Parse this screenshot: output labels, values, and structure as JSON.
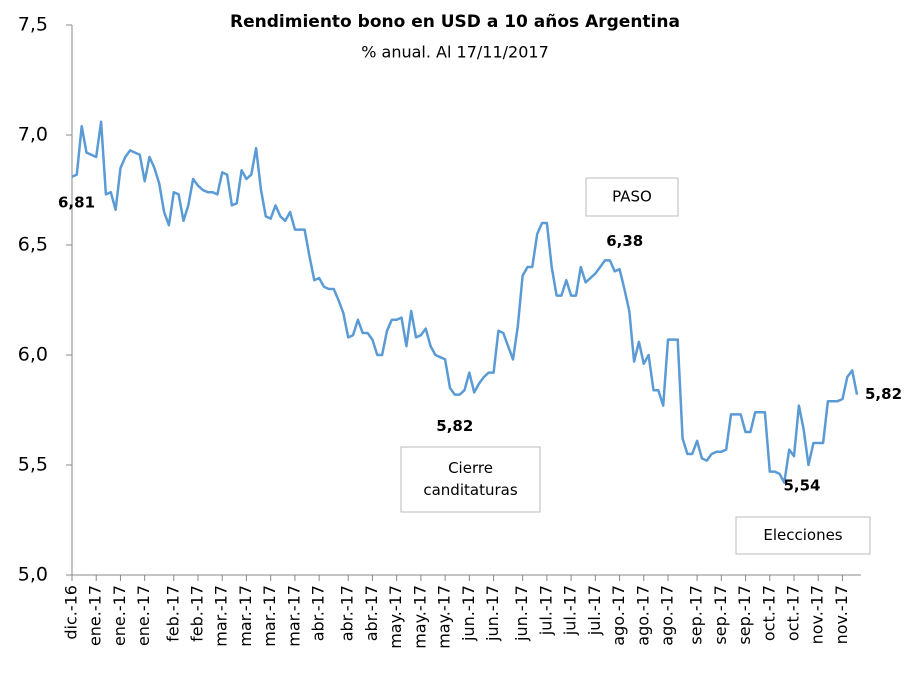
{
  "chart_data": {
    "type": "line",
    "title": "Rendimiento bono en USD a 10 años Argentina",
    "subtitle": "% anual. Al 17/11/2017",
    "color": "#5b9bd5",
    "categories": [
      "dic.-16",
      null,
      null,
      null,
      null,
      "ene.-17",
      null,
      null,
      null,
      null,
      "ene.-17",
      null,
      null,
      null,
      null,
      "ene.-17",
      null,
      null,
      null,
      null,
      null,
      "feb.-17",
      null,
      null,
      null,
      null,
      "feb.-17",
      null,
      null,
      null,
      null,
      "mar.-17",
      null,
      null,
      null,
      null,
      "mar.-17",
      null,
      null,
      null,
      null,
      "mar.-17",
      null,
      null,
      null,
      null,
      "mar.-17",
      null,
      null,
      null,
      null,
      "abr.-17",
      null,
      null,
      null,
      null,
      null,
      "abr.-17",
      null,
      null,
      null,
      null,
      "abr.-17",
      null,
      null,
      null,
      null,
      "may.-17",
      null,
      null,
      null,
      null,
      "may.-17",
      null,
      null,
      null,
      null,
      "may.-17",
      null,
      null,
      null,
      null,
      "jun.-17",
      null,
      null,
      null,
      null,
      "jun.-17",
      null,
      null,
      null,
      null,
      null,
      "jun.-17",
      null,
      null,
      null,
      null,
      "jul.-17",
      null,
      null,
      null,
      null,
      "jul.-17",
      null,
      null,
      null,
      null,
      "jul.-17",
      null,
      null,
      null,
      null,
      "ago.-17",
      null,
      null,
      null,
      null,
      "ago.-17",
      null,
      null,
      null,
      null,
      "ago.-17",
      null,
      null,
      null,
      null,
      null,
      "sep.-17",
      null,
      null,
      null,
      null,
      "sep.-17",
      null,
      null,
      null,
      null,
      "sep.-17",
      null,
      null,
      null,
      null,
      "oct.-17",
      null,
      null,
      null,
      null,
      "oct.-17",
      null,
      null,
      null,
      null,
      "nov.-17",
      null,
      null,
      null,
      null,
      "nov.-17",
      null,
      null,
      null
    ],
    "values": [
      6.81,
      6.82,
      7.04,
      6.92,
      6.91,
      6.9,
      7.06,
      6.73,
      6.74,
      6.66,
      6.85,
      6.9,
      6.93,
      6.92,
      6.91,
      6.79,
      6.9,
      6.85,
      6.78,
      6.65,
      6.59,
      6.74,
      6.73,
      6.61,
      6.68,
      6.8,
      6.77,
      6.75,
      6.74,
      6.74,
      6.73,
      6.83,
      6.82,
      6.68,
      6.69,
      6.84,
      6.8,
      6.82,
      6.94,
      6.75,
      6.63,
      6.62,
      6.68,
      6.63,
      6.61,
      6.65,
      6.57,
      6.57,
      6.57,
      6.45,
      6.34,
      6.35,
      6.31,
      6.3,
      6.3,
      6.25,
      6.19,
      6.08,
      6.09,
      6.16,
      6.1,
      6.1,
      6.07,
      6.0,
      6.0,
      6.11,
      6.16,
      6.16,
      6.17,
      6.04,
      6.2,
      6.08,
      6.09,
      6.12,
      6.04,
      6.0,
      5.99,
      5.98,
      5.85,
      5.82,
      5.82,
      5.84,
      5.92,
      5.83,
      5.87,
      5.9,
      5.92,
      5.92,
      6.11,
      6.1,
      6.04,
      5.98,
      6.13,
      6.36,
      6.4,
      6.4,
      6.55,
      6.6,
      6.6,
      6.4,
      6.27,
      6.27,
      6.34,
      6.27,
      6.27,
      6.4,
      6.33,
      6.35,
      6.37,
      6.4,
      6.43,
      6.43,
      6.38,
      6.39,
      6.3,
      6.2,
      5.97,
      6.06,
      5.96,
      6.0,
      5.84,
      5.84,
      5.77,
      6.07,
      6.07,
      6.07,
      5.62,
      5.55,
      5.55,
      5.61,
      5.53,
      5.52,
      5.55,
      5.56,
      5.56,
      5.57,
      5.73,
      5.73,
      5.73,
      5.65,
      5.65,
      5.74,
      5.74,
      5.74,
      5.47,
      5.47,
      5.46,
      5.42,
      5.57,
      5.54,
      5.77,
      5.66,
      5.5,
      5.6,
      5.6,
      5.6,
      5.79,
      5.79,
      5.79,
      5.8,
      5.9,
      5.93,
      5.82
    ],
    "value_labels": [
      "6,81",
      null,
      null,
      null,
      null,
      null,
      null,
      null,
      null,
      null,
      null,
      null,
      null,
      null,
      null,
      null,
      null,
      null,
      null,
      null,
      null,
      null,
      null,
      null,
      null,
      null,
      null,
      null,
      null,
      null,
      null,
      null,
      null,
      null,
      null,
      null,
      null,
      null,
      null,
      null,
      null,
      null,
      null,
      null,
      null,
      null,
      null,
      null,
      null,
      null,
      null,
      null,
      null,
      null,
      null,
      null,
      null,
      null,
      null,
      null,
      null,
      null,
      null,
      null,
      null,
      null,
      null,
      null,
      null,
      null,
      null,
      null,
      null,
      null,
      null,
      null,
      null,
      null,
      null,
      "5,82",
      null,
      null,
      null,
      null,
      null,
      null,
      null,
      null,
      null,
      null,
      null,
      null,
      null,
      null,
      null,
      null,
      null,
      null,
      null,
      null,
      null,
      null,
      null,
      null,
      null,
      null,
      null,
      null,
      null,
      null,
      null,
      null,
      "6,38",
      null,
      null,
      null,
      null,
      null,
      null,
      null,
      null,
      null,
      null,
      null,
      null,
      null,
      null,
      null,
      null,
      null,
      null,
      null,
      null,
      null,
      null,
      null,
      null,
      null,
      null,
      null,
      null,
      null,
      null,
      null,
      null,
      null,
      null,
      null,
      null,
      "5,54",
      null,
      null,
      null,
      null,
      null,
      null,
      null,
      null,
      null,
      null,
      null,
      null,
      "5,82"
    ],
    "ylim": [
      5.0,
      7.5
    ],
    "yticks": [
      {
        "value": 5.0,
        "label": "5,0"
      },
      {
        "value": 5.5,
        "label": "5,5"
      },
      {
        "value": 6.0,
        "label": "6,0"
      },
      {
        "value": 6.5,
        "label": "6,5"
      },
      {
        "value": 7.0,
        "label": "7,0"
      },
      {
        "value": 7.5,
        "label": "7,5"
      }
    ],
    "grid": false,
    "annotations": [
      {
        "lines": [
          "PASO"
        ]
      },
      {
        "lines": [
          "Cierre",
          "canditaturas"
        ]
      },
      {
        "lines": [
          "Elecciones"
        ]
      }
    ]
  }
}
